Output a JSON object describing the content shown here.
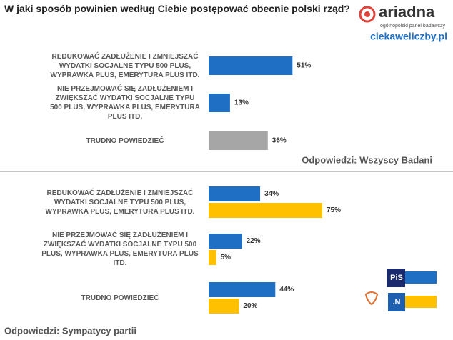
{
  "header": {
    "title": "W jaki sposób powinien według Ciebie postępować obecnie polski rząd?",
    "logo": "ariadna",
    "logo_sub": "ogólnopolski panel badawczy",
    "site": "ciekaweliczby.pl"
  },
  "chart_data": [
    {
      "type": "bar",
      "orientation": "horizontal",
      "categories": [
        "REDUKOWAĆ ZADŁUŻENIE I ZMNIEJSZAĆ WYDATKI SOCJALNE TYPU 500 PLUS, WYPRAWKA PLUS, EMERYTURA PLUS ITD.",
        "NIE PRZEJMOWAĆ SIĘ ZADŁUŻENIEM I ZWIĘKSZAĆ WYDATKI SOCJALNE TYPU 500 PLUS, WYPRAWKA PLUS, EMERYTURA PLUS ITD.",
        "TRUDNO POWIEDZIEĆ"
      ],
      "values": [
        51,
        13,
        36
      ],
      "value_labels": [
        "51%",
        "13%",
        "36%"
      ],
      "colors": [
        "#1f6fc5",
        "#1f6fc5",
        "#a6a6a6"
      ],
      "note": "Odpowiedzi: Wszyscy Badani"
    },
    {
      "type": "bar",
      "orientation": "horizontal",
      "categories": [
        "REDUKOWAĆ ZADŁUŻENIE I ZMNIEJSZAĆ WYDATKI SOCJALNE TYPU 500 PLUS, WYPRAWKA PLUS, EMERYTURA PLUS ITD.",
        "NIE PRZEJMOWAĆ SIĘ ZADŁUŻENIEM I ZWIĘKSZAĆ WYDATKI SOCJALNE TYPU 500 PLUS, WYPRAWKA PLUS, EMERYTURA PLUS ITD.",
        "TRUDNO POWIEDZIEĆ"
      ],
      "series": [
        {
          "name": "PiS",
          "color": "#1f6fc5",
          "values": [
            34,
            22,
            44
          ],
          "value_labels": [
            "34%",
            "22%",
            "44%"
          ]
        },
        {
          "name": ".N",
          "color": "#ffc000",
          "values": [
            75,
            5,
            20
          ],
          "value_labels": [
            "75%",
            "5%",
            "20%"
          ]
        }
      ],
      "note": "Odpowiedzi: Sympatycy partii"
    }
  ]
}
